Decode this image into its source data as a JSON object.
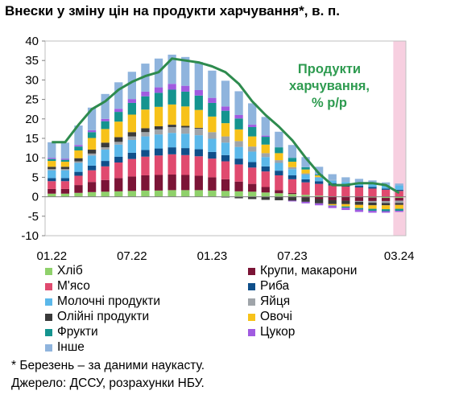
{
  "title": "Внески у зміну цін на продукти харчування*, в. п.",
  "footnote": "* Березень – за даними наукасту.",
  "source": "Джерело: ДССУ, розрахунки НБУ.",
  "colors": {
    "bread": "#8fd16b",
    "cereals": "#7b1436",
    "meat": "#e04a6f",
    "fish": "#0f4f8a",
    "dairy": "#5bb8ea",
    "eggs": "#9fa4a9",
    "oils": "#3a3a3a",
    "veg": "#f7c21a",
    "fruits": "#15948f",
    "sugar": "#a05be0",
    "other": "#8fb4dd",
    "total_line": "#2e8b4e",
    "annotation": "#2e9b50",
    "highlight": "#f7cfe0"
  },
  "chart_data": {
    "type": "bar",
    "stacked": true,
    "ylim": [
      -10,
      40
    ],
    "yticks": [
      -10,
      -5,
      0,
      5,
      10,
      15,
      20,
      25,
      30,
      35,
      40
    ],
    "xtick_labels": [
      "01.22",
      "07.22",
      "01.23",
      "07.23",
      "03.24"
    ],
    "xtick_index": [
      0,
      6,
      12,
      18,
      26
    ],
    "periods": [
      "01.22",
      "02.22",
      "03.22",
      "04.22",
      "05.22",
      "06.22",
      "07.22",
      "08.22",
      "09.22",
      "10.22",
      "11.22",
      "12.22",
      "01.23",
      "02.23",
      "03.23",
      "04.23",
      "05.23",
      "06.23",
      "07.23",
      "08.23",
      "09.23",
      "10.23",
      "11.23",
      "12.23",
      "01.24",
      "02.24",
      "03.24"
    ],
    "nowcast_index": 26,
    "annotation": "Продукти харчування, % р/р",
    "annotation_lines": [
      "Продукти",
      "харчування,",
      "% р/р"
    ],
    "series": [
      {
        "name": "Хліб",
        "key": "bread",
        "values": [
          0.8,
          0.8,
          1.0,
          1.2,
          1.3,
          1.4,
          1.5,
          1.6,
          1.6,
          1.7,
          1.7,
          1.7,
          1.6,
          1.5,
          1.4,
          1.3,
          1.1,
          0.9,
          0.7,
          0.5,
          0.3,
          0.1,
          0.0,
          -0.1,
          -0.2,
          -0.3,
          -0.3
        ]
      },
      {
        "name": "Крупи, макарони",
        "key": "cereals",
        "values": [
          1.2,
          1.2,
          2.0,
          2.6,
          3.0,
          3.4,
          3.7,
          3.9,
          4.0,
          4.0,
          3.9,
          3.7,
          3.4,
          3.0,
          2.5,
          2.0,
          1.4,
          0.8,
          0.3,
          -0.2,
          -0.6,
          -0.9,
          -1.0,
          -1.0,
          -0.9,
          -0.8,
          -0.7
        ]
      },
      {
        "name": "М'ясо",
        "key": "meat",
        "values": [
          2.0,
          2.0,
          2.4,
          3.0,
          3.5,
          4.0,
          4.5,
          4.8,
          5.0,
          5.2,
          5.1,
          5.0,
          4.8,
          4.6,
          4.4,
          4.2,
          4.0,
          3.8,
          3.5,
          3.2,
          3.0,
          2.8,
          2.6,
          2.4,
          2.1,
          1.8,
          1.5
        ]
      },
      {
        "name": "Риба",
        "key": "fish",
        "values": [
          0.8,
          0.8,
          1.0,
          1.2,
          1.4,
          1.5,
          1.6,
          1.7,
          1.8,
          1.8,
          1.8,
          1.8,
          1.7,
          1.6,
          1.5,
          1.4,
          1.3,
          1.2,
          1.0,
          0.8,
          0.7,
          0.6,
          0.5,
          0.4,
          0.4,
          0.3,
          0.3
        ]
      },
      {
        "name": "Молочні продукти",
        "key": "dairy",
        "values": [
          2.0,
          2.0,
          2.3,
          2.6,
          2.9,
          3.1,
          3.3,
          3.5,
          3.6,
          3.7,
          3.7,
          3.6,
          3.4,
          3.2,
          3.0,
          2.7,
          2.4,
          2.0,
          1.6,
          1.2,
          0.9,
          0.7,
          0.7,
          0.8,
          0.9,
          1.0,
          1.1
        ]
      },
      {
        "name": "Яйця",
        "key": "eggs",
        "values": [
          0.3,
          0.3,
          0.4,
          0.5,
          0.6,
          0.7,
          0.9,
          1.1,
          1.3,
          1.5,
          1.6,
          1.7,
          1.7,
          1.6,
          1.5,
          1.3,
          1.0,
          0.7,
          0.5,
          0.3,
          0.2,
          0.1,
          0.0,
          -0.2,
          -0.4,
          -0.5,
          -0.6
        ]
      },
      {
        "name": "Олійні продукти",
        "key": "oils",
        "values": [
          0.6,
          0.6,
          0.8,
          1.0,
          1.2,
          1.2,
          1.1,
          1.0,
          0.8,
          0.6,
          0.4,
          0.2,
          0.0,
          -0.2,
          -0.4,
          -0.6,
          -0.8,
          -0.9,
          -1.0,
          -1.1,
          -1.1,
          -1.0,
          -0.9,
          -0.8,
          -0.7,
          -0.6,
          -0.5
        ]
      },
      {
        "name": "Овочі",
        "key": "veg",
        "values": [
          1.5,
          1.3,
          2.0,
          3.0,
          3.5,
          4.0,
          4.5,
          4.8,
          5.0,
          5.2,
          5.0,
          4.6,
          4.0,
          3.4,
          3.0,
          2.6,
          2.2,
          1.8,
          1.4,
          1.0,
          0.4,
          -0.3,
          -0.6,
          -0.8,
          -0.9,
          -1.0,
          -1.0
        ]
      },
      {
        "name": "Фрукти",
        "key": "fruits",
        "values": [
          0.5,
          0.5,
          1.0,
          1.5,
          2.0,
          2.5,
          3.0,
          3.4,
          3.6,
          3.8,
          3.8,
          3.7,
          3.5,
          3.2,
          2.8,
          2.4,
          2.0,
          1.5,
          1.0,
          0.6,
          0.2,
          -0.1,
          -0.3,
          -0.4,
          -0.5,
          -0.5,
          -0.5
        ]
      },
      {
        "name": "Цукор",
        "key": "sugar",
        "values": [
          0.3,
          0.3,
          0.4,
          0.5,
          0.6,
          0.8,
          1.0,
          1.2,
          1.4,
          1.5,
          1.5,
          1.4,
          1.3,
          1.1,
          0.9,
          0.6,
          0.3,
          0.0,
          -0.2,
          -0.4,
          -0.5,
          -0.6,
          -0.6,
          -0.6,
          -0.5,
          -0.4,
          -0.3
        ]
      },
      {
        "name": "Інше",
        "key": "other",
        "values": [
          4.0,
          4.1,
          5.0,
          5.8,
          6.4,
          6.8,
          7.0,
          7.2,
          7.4,
          7.5,
          7.4,
          7.2,
          7.0,
          6.6,
          6.1,
          5.5,
          4.8,
          4.0,
          3.3,
          2.6,
          2.0,
          1.5,
          1.2,
          1.0,
          0.8,
          0.6,
          0.5
        ]
      }
    ],
    "line": {
      "name": "Продукти харчування, % р/р",
      "values": [
        14.0,
        14.0,
        18.5,
        22.5,
        24.5,
        27.5,
        29.5,
        31.0,
        32.0,
        35.5,
        35.0,
        34.5,
        33.5,
        32.0,
        29.0,
        24.5,
        21.0,
        18.0,
        14.5,
        10.0,
        6.0,
        3.0,
        3.0,
        3.5,
        3.5,
        3.0,
        1.0
      ]
    }
  }
}
